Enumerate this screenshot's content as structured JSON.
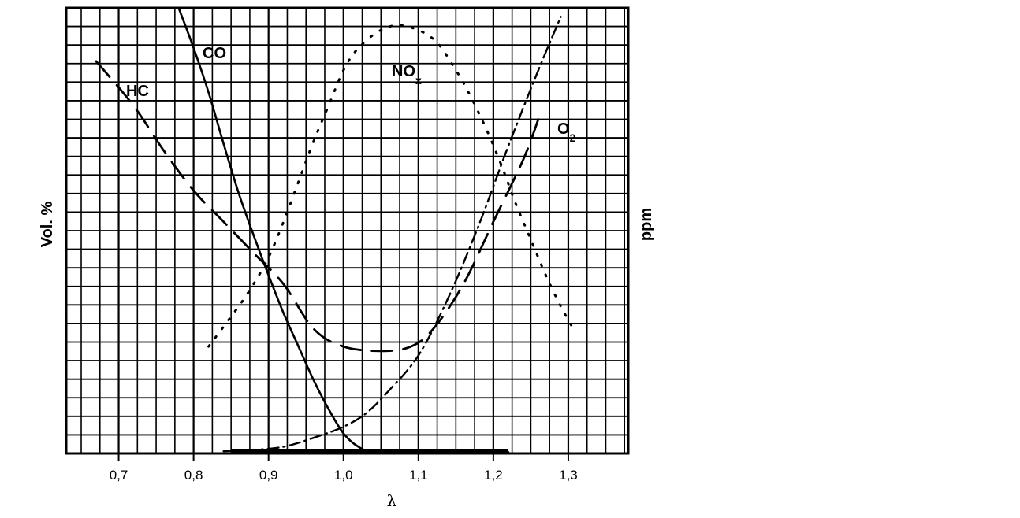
{
  "chart_data": {
    "type": "line",
    "xlabel": "λ",
    "ylabel_left": "Vol. %",
    "ylabel_right": "ppm",
    "xlim": [
      0.63,
      1.38
    ],
    "x_ticks": [
      0.7,
      0.8,
      0.9,
      1.0,
      1.1,
      1.2,
      1.3
    ],
    "x_tick_labels": [
      "0,7",
      "0,8",
      "0,9",
      "1,0",
      "1,1",
      "1,2",
      "1,3"
    ],
    "ylim": [
      0,
      100
    ],
    "grid": true,
    "series": [
      {
        "name": "CO",
        "style": "solid",
        "x": [
          0.78,
          0.8,
          0.82,
          0.84,
          0.86,
          0.88,
          0.9,
          0.92,
          0.94,
          0.96,
          0.98,
          1.0,
          1.02,
          1.04,
          1.1,
          1.22
        ],
        "y": [
          100,
          91,
          81,
          69.5,
          58.5,
          49,
          40,
          31.5,
          24,
          16.5,
          10,
          4.5,
          1.5,
          0.5,
          0.3,
          0.3
        ]
      },
      {
        "name": "HC",
        "style": "dashed",
        "x": [
          0.67,
          0.72,
          0.76,
          0.8,
          0.84,
          0.88,
          0.92,
          0.96,
          1.0,
          1.05,
          1.09,
          1.12,
          1.16,
          1.2,
          1.24,
          1.26
        ],
        "y": [
          88,
          78,
          68,
          59,
          52,
          45,
          38,
          28,
          24,
          23,
          24,
          28,
          38,
          52,
          66,
          75
        ]
      },
      {
        "name": "NOx",
        "style": "dotted",
        "x": [
          0.82,
          0.86,
          0.88,
          0.9,
          0.92,
          0.94,
          0.96,
          0.98,
          1.0,
          1.02,
          1.05,
          1.08,
          1.12,
          1.15,
          1.17,
          1.19,
          1.21,
          1.23,
          1.25,
          1.27,
          1.29,
          1.31
        ],
        "y": [
          24,
          33,
          38,
          44,
          52,
          61,
          70,
          78,
          86,
          91,
          95,
          96,
          93,
          86,
          80,
          73,
          65,
          56,
          48,
          40,
          33,
          27
        ]
      },
      {
        "name": "O2",
        "style": "dash-dot",
        "x": [
          0.84,
          0.88,
          0.92,
          0.96,
          1.0,
          1.03,
          1.06,
          1.1,
          1.14,
          1.18,
          1.22,
          1.26,
          1.29
        ],
        "y": [
          0.5,
          0.8,
          1.5,
          3.5,
          6,
          9,
          14,
          22,
          35,
          51,
          69,
          86,
          98
        ]
      }
    ],
    "labels": {
      "co": "CO",
      "hc": "HC",
      "nox_main": "NO",
      "nox_sub": "x",
      "o2_main": "O",
      "o2_sub": "2"
    }
  }
}
